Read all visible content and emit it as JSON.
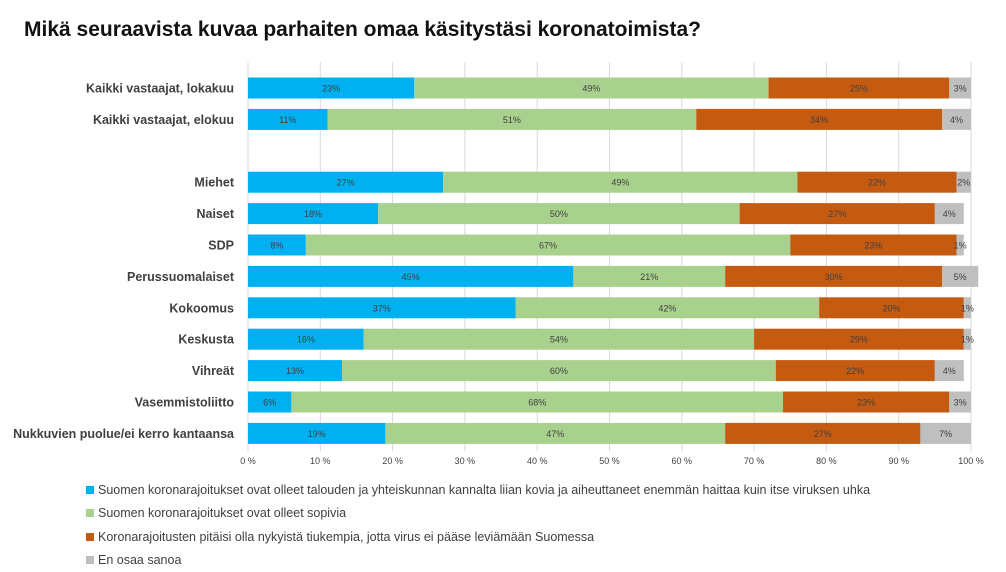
{
  "title": "Mikä seuraavista kuvaa parhaiten omaa käsitystäsi koronatoimista?",
  "chart_data": {
    "type": "bar",
    "orientation": "horizontal",
    "stacked": "percent",
    "title": "Mikä seuraavista kuvaa parhaiten omaa käsitystäsi koronatoimista?",
    "xlim": [
      0,
      100
    ],
    "x_ticks": [
      "0 %",
      "10 %",
      "20 %",
      "30 %",
      "40 %",
      "50 %",
      "60 %",
      "70 %",
      "80 %",
      "90 %",
      "100 %"
    ],
    "grid": true,
    "legend_position": "bottom",
    "categories": [
      "Kaikki vastaajat, lokakuu",
      "Kaikki vastaajat, elokuu",
      "",
      "Miehet",
      "Naiset",
      "SDP",
      "Perussuomalaiset",
      "Kokoomus",
      "Keskusta",
      "Vihreät",
      "Vasemmistoliitto",
      "Nukkuvien puolue/ei kerro kantaansa"
    ],
    "series": [
      {
        "name": "Suomen koronarajoitukset ovat olleet talouden ja yhteiskunnan kannalta liian kovia ja aiheuttaneet enemmän haittaa kuin itse viruksen uhka",
        "color": "#00B0F0",
        "values": [
          23,
          11,
          null,
          27,
          18,
          8,
          45,
          37,
          16,
          13,
          6,
          19
        ]
      },
      {
        "name": "Suomen koronarajoitukset ovat olleet sopivia",
        "color": "#A9D18E",
        "values": [
          49,
          51,
          null,
          49,
          50,
          67,
          21,
          42,
          54,
          60,
          68,
          47
        ]
      },
      {
        "name": "Koronarajoitusten pitäisi olla nykyistä tiukempia, jotta virus ei pääse leviämään Suomessa",
        "color": "#C55A11",
        "values": [
          25,
          34,
          null,
          22,
          27,
          23,
          30,
          20,
          29,
          22,
          23,
          27
        ]
      },
      {
        "name": "En osaa sanoa",
        "color": "#BFBFBF",
        "values": [
          3,
          4,
          null,
          2,
          4,
          1,
          5,
          1,
          1,
          4,
          3,
          7
        ]
      }
    ]
  }
}
